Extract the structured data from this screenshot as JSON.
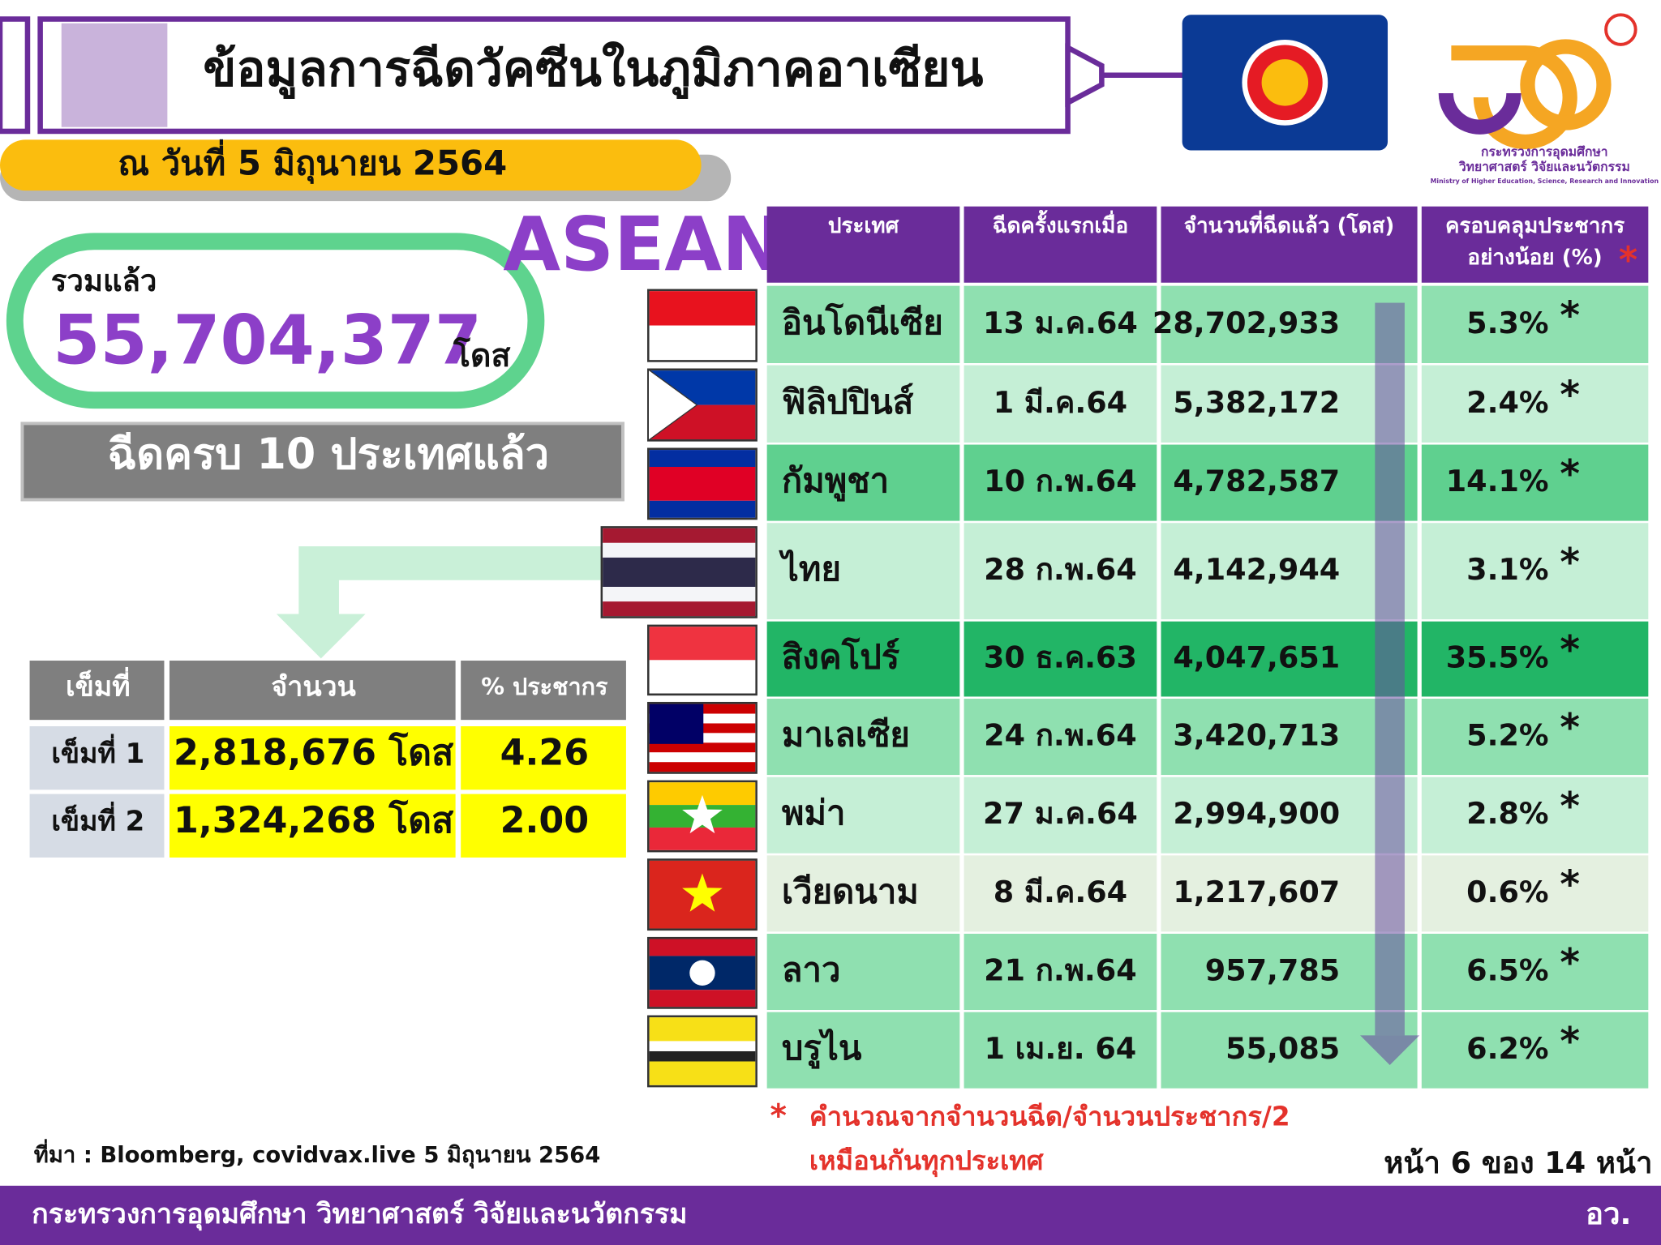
{
  "header": {
    "title": "ข้อมูลการฉีดวัคซีนในภูมิภาคอาเซียน",
    "date": "ณ วันที่ 5 มิถุนายน 2564",
    "ministry": [
      "กระทรวงการอุดมศึกษา",
      "วิทยาศาสตร์ วิจัยและนวัตกรรม",
      "Ministry of Higher Education, Science, Research and Innovation"
    ]
  },
  "asean": "ASEAN",
  "total": {
    "label": "รวมแล้ว",
    "value": "55,704,377",
    "unit": "โดส"
  },
  "complete": "ฉีดครบ 10 ประเทศแล้ว",
  "thailand": {
    "headers": [
      "เข็มที่",
      "จำนวน",
      "% ประชากร"
    ],
    "rows": [
      [
        "เข็มที่ 1",
        "2,818,676 โดส",
        "4.26"
      ],
      [
        "เข็มที่ 2",
        "1,324,268 โดส",
        "2.00"
      ]
    ]
  },
  "table": {
    "headers": [
      "ประเทศ",
      "ฉีดครั้งแรกเมื่อ",
      "จำนวนที่ฉีดแล้ว (โดส)",
      [
        "ครอบคลุมประชากร",
        "อย่างน้อย (%)"
      ]
    ],
    "asterisk": "*",
    "rows": [
      [
        "อินโดนีเซีย",
        "13 ม.ค.64",
        "28,702,933",
        "5.3%"
      ],
      [
        "ฟิลิปปินส์",
        "1 มี.ค.64",
        "5,382,172",
        "2.4%"
      ],
      [
        "กัมพูชา",
        "10 ก.พ.64",
        "4,782,587",
        "14.1%"
      ],
      [
        "ไทย",
        "28 ก.พ.64",
        "4,142,944",
        "3.1%"
      ],
      [
        "สิงคโปร์",
        "30 ธ.ค.63",
        "4,047,651",
        "35.5%"
      ],
      [
        "มาเลเซีย",
        "24 ก.พ.64",
        "3,420,713",
        "5.2%"
      ],
      [
        "พม่า",
        "27 ม.ค.64",
        "2,994,900",
        "2.8%"
      ],
      [
        "เวียดนาม",
        "8 มี.ค.64",
        "1,217,607",
        "0.6%"
      ],
      [
        "ลาว",
        "21 ก.พ.64",
        "957,785",
        "6.5%"
      ],
      [
        "บรูไน",
        "1 เม.ย. 64",
        "55,085",
        "6.2%"
      ]
    ]
  },
  "note": [
    "คำนวณจากจำนวนฉีด/จำนวนประชากร/2",
    "เหมือนกันทุกประเทศ"
  ],
  "source": "ที่มา : Bloomberg, covidvax.live 5 มิถุนายน 2564",
  "page": "หน้า 6 ของ 14 หน้า",
  "footer": {
    "left": "กระทรวงการอุดมศึกษา วิทยาศาสตร์ วิจัยและนวัตกรรม",
    "right": "อว."
  }
}
